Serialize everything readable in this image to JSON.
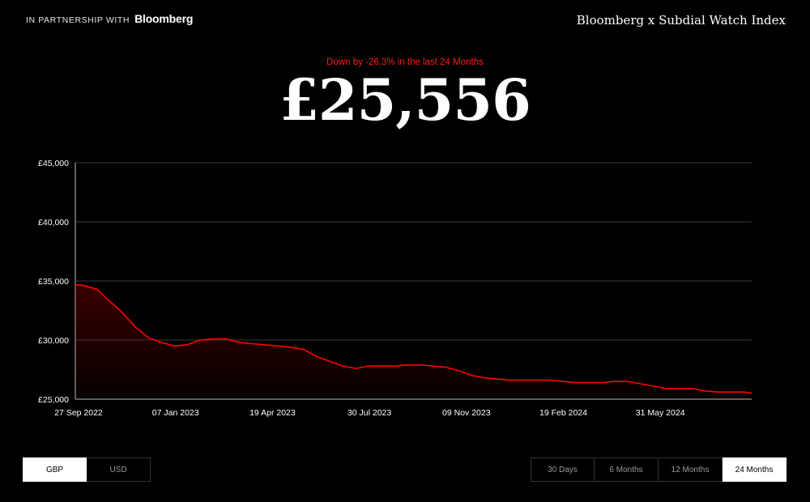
{
  "header": {
    "partner_prefix": "IN PARTNERSHIP WITH",
    "partner_brand": "Bloomberg",
    "index_title": "Bloomberg x Subdial Watch Index"
  },
  "summary": {
    "change_text": "Down by -26.3% in the last 24 Months",
    "price": "£25,556"
  },
  "colors": {
    "line": "#ff0000",
    "background": "#000000",
    "grid": "#3a3a3a"
  },
  "currency_toggle": {
    "options": [
      {
        "label": "GBP",
        "active": true
      },
      {
        "label": "USD",
        "active": false
      }
    ]
  },
  "period_toggle": {
    "options": [
      {
        "label": "30 Days",
        "active": false
      },
      {
        "label": "6 Months",
        "active": false
      },
      {
        "label": "12 Months",
        "active": false
      },
      {
        "label": "24 Months",
        "active": true
      }
    ]
  },
  "chart_data": {
    "type": "area",
    "title": "",
    "xlabel": "",
    "ylabel": "",
    "y_ticks": [
      {
        "value": 25000,
        "label": "£25,000"
      },
      {
        "value": 30000,
        "label": "£30,000"
      },
      {
        "value": 35000,
        "label": "£35,000"
      },
      {
        "value": 40000,
        "label": "£40,000"
      },
      {
        "value": 45000,
        "label": "£45,000"
      }
    ],
    "ylim": [
      25000,
      45000
    ],
    "grid": true,
    "legend": "none",
    "x_ticks": [
      "27 Sep 2022",
      "07 Jan 2023",
      "19 Apr 2023",
      "30 Jul 2023",
      "09 Nov 2023",
      "19 Feb 2024",
      "31 May 2024"
    ],
    "xlim": [
      "2022-09-27",
      "2024-09-27"
    ],
    "series": [
      {
        "x": [
          "2022-09-27",
          "2022-10-07",
          "2022-10-20",
          "2022-11-03",
          "2022-11-17",
          "2022-12-01",
          "2022-12-15",
          "2022-12-29",
          "2023-01-12",
          "2023-01-26",
          "2023-02-09",
          "2023-02-23",
          "2023-03-09",
          "2023-03-23",
          "2023-04-06",
          "2023-04-20",
          "2023-05-04",
          "2023-05-18",
          "2023-06-01",
          "2023-06-15",
          "2023-06-29",
          "2023-07-13",
          "2023-07-27",
          "2023-08-10",
          "2023-08-24",
          "2023-09-07",
          "2023-09-21",
          "2023-10-05",
          "2023-10-19",
          "2023-11-02",
          "2023-11-16",
          "2023-11-30",
          "2023-12-14",
          "2023-12-28",
          "2024-01-11",
          "2024-01-25",
          "2024-02-08",
          "2024-02-22",
          "2024-03-07",
          "2024-03-21",
          "2024-04-04",
          "2024-04-18",
          "2024-05-02",
          "2024-05-16",
          "2024-05-30",
          "2024-06-13",
          "2024-06-27",
          "2024-07-11",
          "2024-07-25",
          "2024-08-08",
          "2024-08-22",
          "2024-09-05",
          "2024-09-19",
          "2024-09-27"
        ],
        "y": [
          34700,
          34600,
          34300,
          33300,
          32300,
          31100,
          30200,
          29800,
          29500,
          29600,
          30000,
          30100,
          30100,
          29800,
          29700,
          29600,
          29500,
          29400,
          29200,
          28600,
          28200,
          27800,
          27600,
          27800,
          27800,
          27800,
          27900,
          27900,
          27800,
          27700,
          27400,
          27000,
          26800,
          26700,
          26600,
          26600,
          26600,
          26600,
          26500,
          26400,
          26400,
          26400,
          26500,
          26500,
          26300,
          26100,
          25900,
          25900,
          25900,
          25700,
          25600,
          25600,
          25600,
          25500
        ]
      }
    ]
  }
}
